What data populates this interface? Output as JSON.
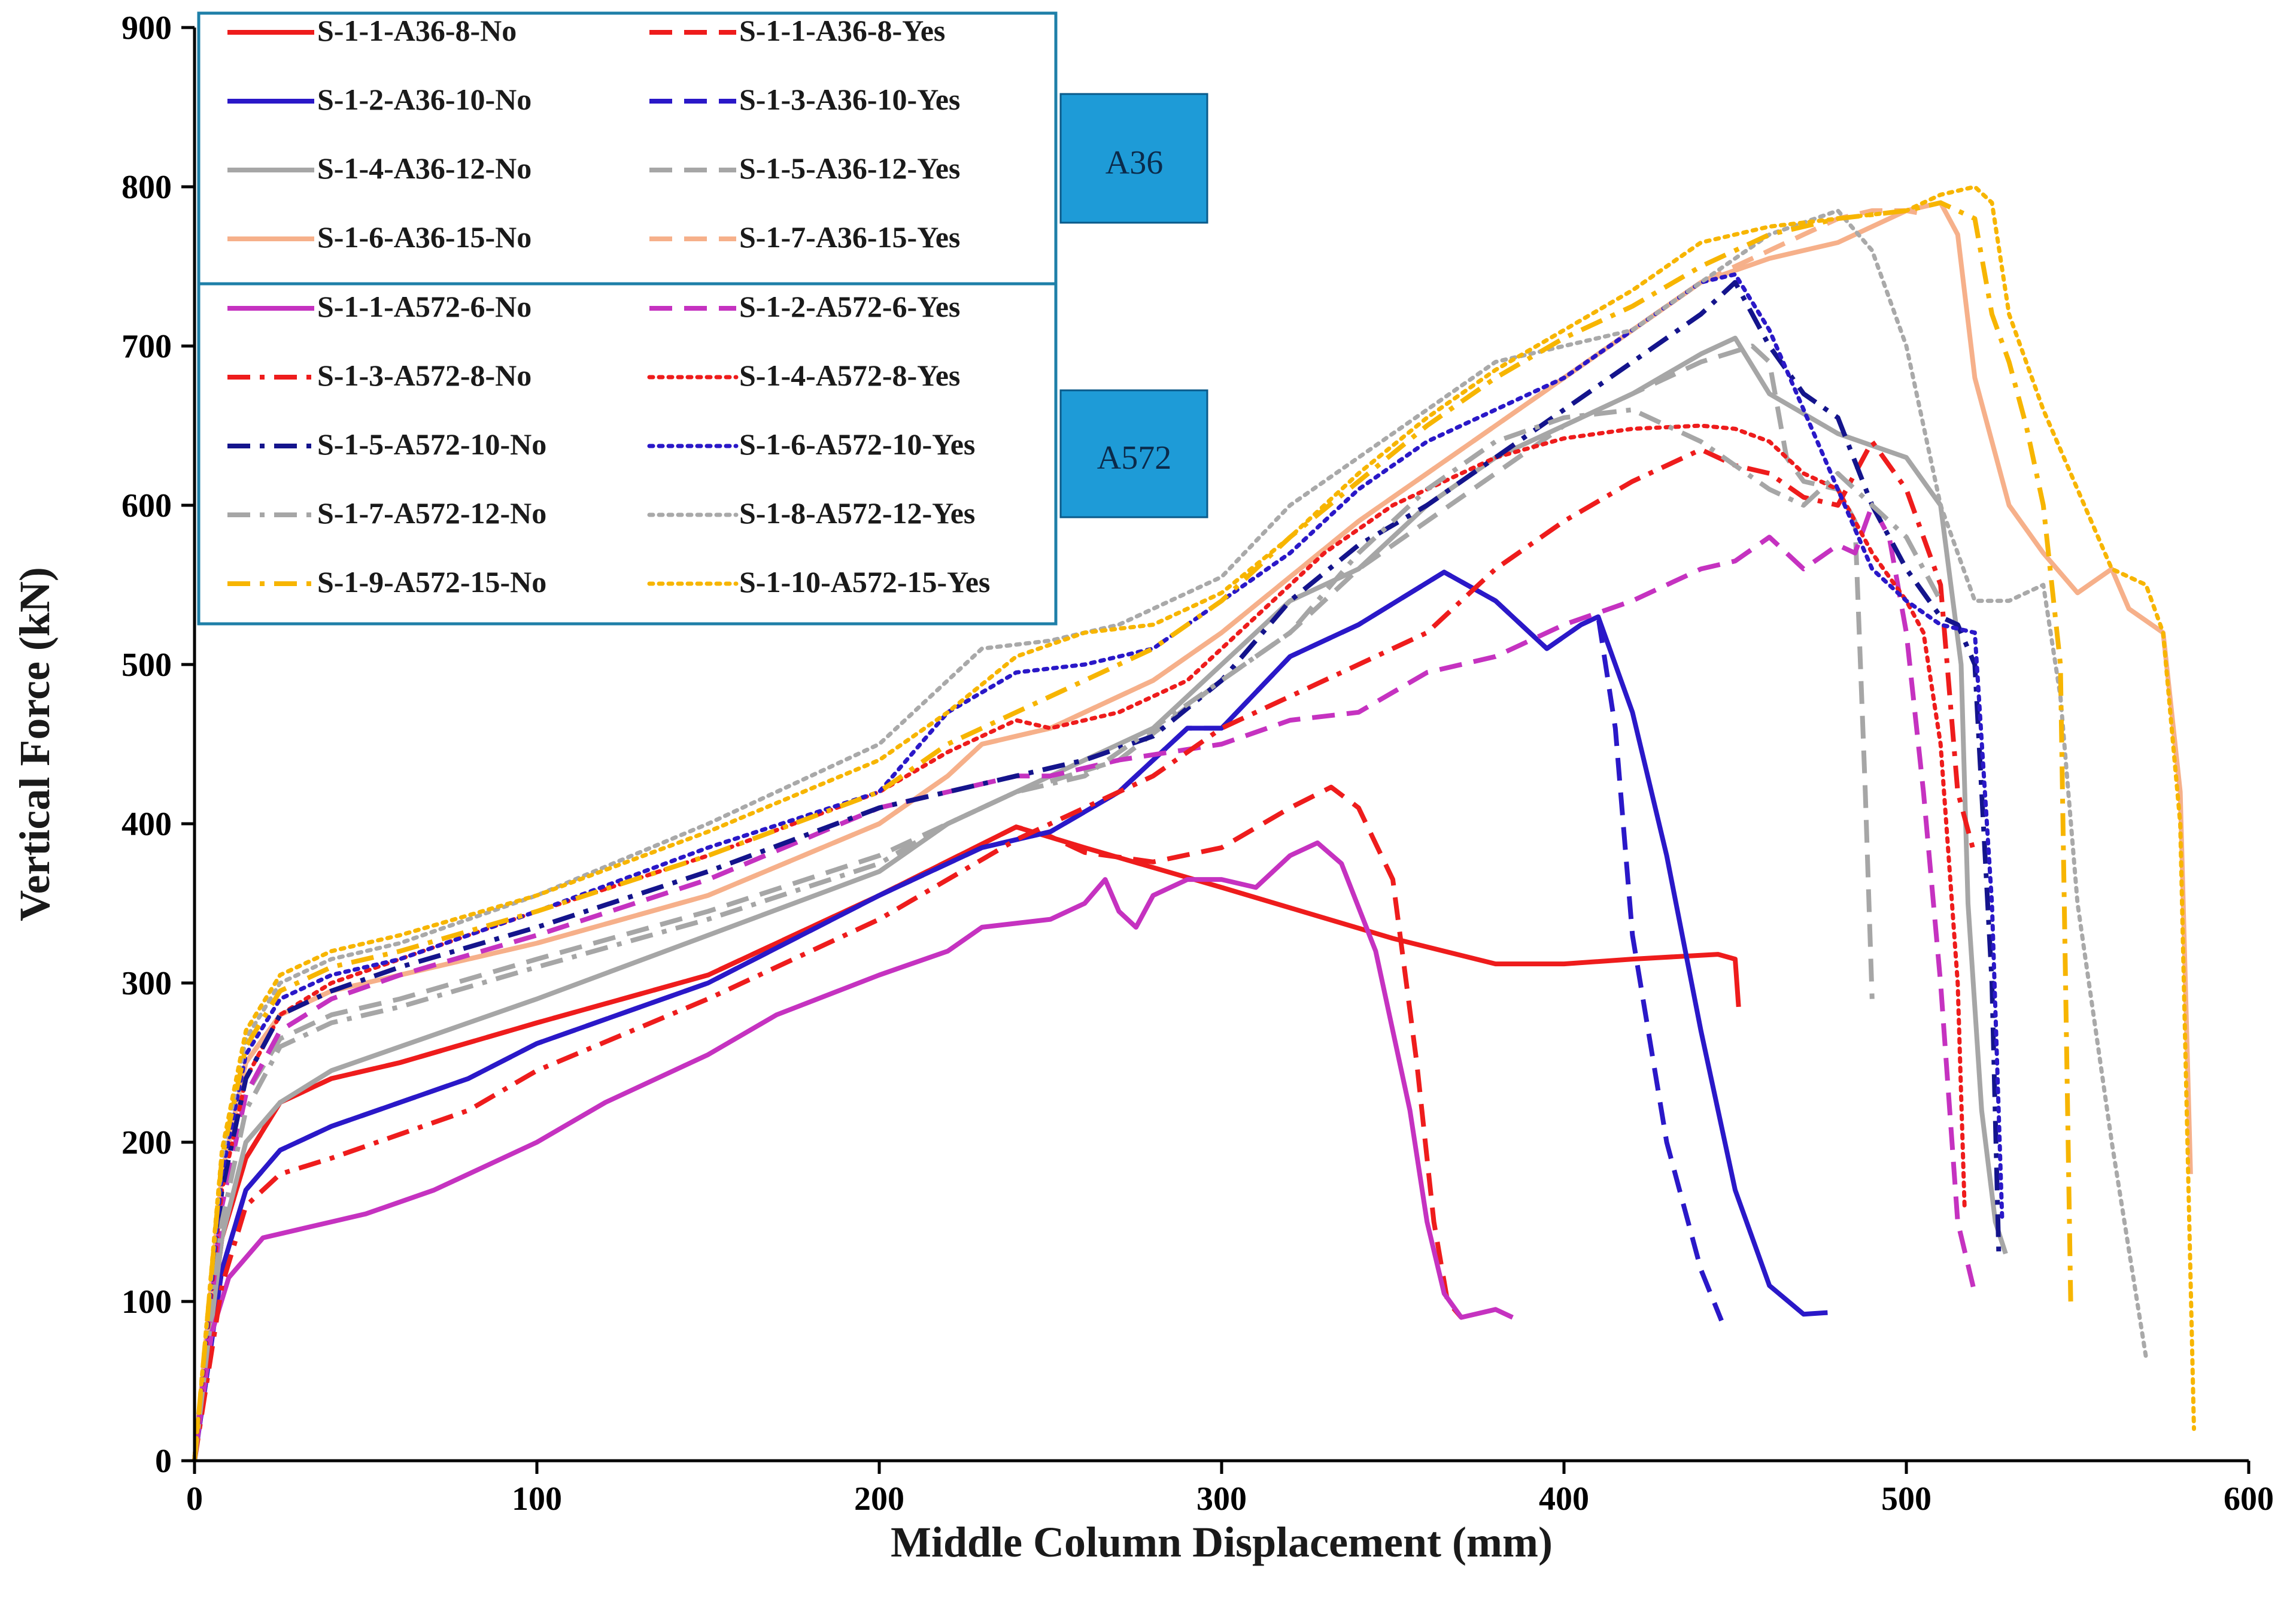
{
  "chart_data": {
    "type": "line",
    "title": "",
    "xlabel": "Middle Column Displacement (mm)",
    "ylabel": "Vertical Force (kN)",
    "xlim": [
      0,
      600
    ],
    "ylim": [
      0,
      900
    ],
    "xticks": [
      0,
      100,
      200,
      300,
      400,
      500,
      600
    ],
    "yticks": [
      0,
      100,
      200,
      300,
      400,
      500,
      600,
      700,
      800,
      900
    ],
    "grid": false,
    "legend_location": "top-left",
    "group_labels": [
      "A36",
      "A572"
    ],
    "colors": {
      "red": "#ee1c1c",
      "blue": "#2a18c8",
      "gray": "#a6a6a6",
      "peach": "#f6b08a",
      "magenta": "#c532c0",
      "orange": "#f7b500",
      "navy": "#14148c",
      "dotgray": "#a9a9a9"
    },
    "series": [
      {
        "name": "S-1-1-A36-8-No",
        "color": "#ee1c1c",
        "dash": "solid",
        "x": [
          0,
          8,
          15,
          25,
          40,
          60,
          100,
          150,
          200,
          240,
          260,
          300,
          350,
          380,
          400,
          420,
          445,
          450,
          451
        ],
        "y": [
          0,
          140,
          190,
          225,
          240,
          250,
          275,
          305,
          355,
          398,
          385,
          360,
          328,
          312,
          312,
          315,
          318,
          315,
          285
        ]
      },
      {
        "name": "S-1-1-A36-8-Yes",
        "color": "#ee1c1c",
        "dash": "dash",
        "x": [
          0,
          8,
          15,
          25,
          40,
          60,
          100,
          150,
          200,
          240,
          250,
          260,
          280,
          300,
          320,
          332,
          340,
          350,
          357,
          362,
          366,
          370
        ],
        "y": [
          0,
          140,
          190,
          225,
          240,
          250,
          275,
          305,
          355,
          398,
          392,
          382,
          376,
          385,
          410,
          423,
          410,
          365,
          250,
          150,
          100,
          90
        ]
      },
      {
        "name": "S-1-2-A36-10-No",
        "color": "#2a18c8",
        "dash": "solid",
        "x": [
          0,
          8,
          15,
          25,
          40,
          60,
          80,
          100,
          150,
          200,
          230,
          250,
          270,
          290,
          300,
          320,
          340,
          365,
          380,
          395,
          405,
          410,
          420,
          430,
          440,
          450,
          460,
          470,
          477
        ],
        "y": [
          0,
          120,
          170,
          195,
          210,
          225,
          240,
          262,
          300,
          355,
          385,
          395,
          420,
          460,
          460,
          505,
          525,
          558,
          540,
          510,
          525,
          530,
          470,
          380,
          270,
          170,
          110,
          92,
          93
        ]
      },
      {
        "name": "S-1-3-A36-10-Yes",
        "color": "#2a18c8",
        "dash": "dash",
        "x": [
          0,
          8,
          15,
          25,
          40,
          60,
          80,
          100,
          150,
          200,
          230,
          250,
          270,
          290,
          300,
          320,
          340,
          365,
          380,
          395,
          405,
          410,
          415,
          420,
          430,
          440,
          446
        ],
        "y": [
          0,
          120,
          170,
          195,
          210,
          225,
          240,
          262,
          300,
          355,
          385,
          395,
          420,
          460,
          460,
          505,
          525,
          558,
          540,
          510,
          525,
          530,
          460,
          330,
          200,
          120,
          88
        ]
      },
      {
        "name": "S-1-4-A36-12-No",
        "color": "#a6a6a6",
        "dash": "solid",
        "x": [
          0,
          8,
          15,
          25,
          40,
          60,
          100,
          150,
          200,
          220,
          250,
          280,
          300,
          320,
          340,
          360,
          380,
          400,
          420,
          440,
          450,
          460,
          480,
          500,
          510,
          516,
          518,
          522,
          526,
          529
        ],
        "y": [
          0,
          140,
          200,
          225,
          245,
          260,
          290,
          330,
          370,
          400,
          430,
          460,
          500,
          540,
          560,
          600,
          630,
          650,
          670,
          695,
          705,
          670,
          645,
          630,
          600,
          500,
          350,
          220,
          150,
          130
        ]
      },
      {
        "name": "S-1-5-A36-12-Yes",
        "color": "#a6a6a6",
        "dash": "dash",
        "x": [
          0,
          8,
          15,
          25,
          40,
          60,
          100,
          150,
          200,
          240,
          270,
          300,
          320,
          340,
          360,
          380,
          400,
          420,
          440,
          455,
          460,
          465,
          470,
          480,
          485,
          488,
          490
        ],
        "y": [
          0,
          160,
          230,
          265,
          280,
          290,
          315,
          345,
          380,
          420,
          440,
          490,
          520,
          560,
          590,
          620,
          650,
          670,
          690,
          700,
          690,
          630,
          615,
          610,
          590,
          420,
          290
        ]
      },
      {
        "name": "S-1-6-A36-15-No",
        "color": "#f6b08a",
        "dash": "solid",
        "x": [
          0,
          8,
          15,
          25,
          40,
          60,
          100,
          150,
          200,
          220,
          230,
          250,
          280,
          300,
          320,
          340,
          360,
          380,
          400,
          420,
          440,
          460,
          470,
          480,
          490,
          500,
          510,
          515,
          520,
          530,
          540,
          550,
          560,
          565,
          575,
          580,
          583
        ],
        "y": [
          0,
          180,
          250,
          280,
          295,
          305,
          325,
          355,
          400,
          430,
          450,
          460,
          490,
          520,
          555,
          590,
          620,
          650,
          680,
          710,
          740,
          755,
          760,
          765,
          775,
          785,
          790,
          770,
          680,
          600,
          570,
          545,
          560,
          535,
          520,
          420,
          180
        ]
      },
      {
        "name": "S-1-7-A36-15-Yes",
        "color": "#f6b08a",
        "dash": "dash",
        "x": [
          0,
          8,
          15,
          25,
          40,
          60,
          100,
          150,
          200,
          220,
          230,
          250,
          280,
          300,
          320,
          340,
          360,
          380,
          400,
          420,
          440,
          460,
          470,
          480,
          490,
          500,
          505
        ],
        "y": [
          0,
          180,
          250,
          280,
          295,
          305,
          325,
          355,
          400,
          430,
          450,
          460,
          490,
          520,
          555,
          590,
          620,
          650,
          680,
          710,
          740,
          760,
          770,
          780,
          785,
          785,
          783
        ]
      },
      {
        "name": "S-1-1-A572-6-No",
        "color": "#c532c0",
        "dash": "solid",
        "x": [
          0,
          5,
          10,
          20,
          30,
          40,
          50,
          70,
          100,
          120,
          150,
          170,
          200,
          220,
          230,
          250,
          260,
          266,
          270,
          275,
          280,
          290,
          300,
          310,
          320,
          328,
          335,
          345,
          355,
          360,
          365,
          370,
          380,
          385
        ],
        "y": [
          0,
          80,
          115,
          140,
          145,
          150,
          155,
          170,
          200,
          225,
          255,
          280,
          305,
          320,
          335,
          340,
          350,
          365,
          345,
          335,
          355,
          365,
          365,
          360,
          380,
          388,
          375,
          320,
          220,
          150,
          105,
          90,
          95,
          90
        ]
      },
      {
        "name": "S-1-2-A572-6-Yes",
        "color": "#c532c0",
        "dash": "dash",
        "x": [
          0,
          8,
          15,
          25,
          40,
          60,
          100,
          150,
          200,
          240,
          250,
          270,
          300,
          320,
          340,
          360,
          380,
          400,
          420,
          440,
          450,
          460,
          470,
          480,
          485,
          490,
          495,
          500,
          505,
          510,
          515,
          520
        ],
        "y": [
          0,
          160,
          230,
          270,
          290,
          305,
          330,
          365,
          410,
          430,
          430,
          440,
          450,
          465,
          470,
          495,
          505,
          525,
          540,
          560,
          565,
          580,
          560,
          575,
          570,
          600,
          580,
          520,
          420,
          300,
          150,
          105
        ]
      },
      {
        "name": "S-1-3-A572-8-No",
        "color": "#ee1c1c",
        "dash": "dashdot",
        "x": [
          0,
          8,
          15,
          25,
          40,
          60,
          80,
          100,
          150,
          200,
          240,
          260,
          280,
          300,
          320,
          340,
          360,
          380,
          400,
          420,
          440,
          450,
          460,
          470,
          480,
          490,
          500,
          510,
          515,
          520
        ],
        "y": [
          0,
          110,
          160,
          180,
          190,
          205,
          220,
          245,
          290,
          340,
          390,
          410,
          430,
          460,
          480,
          500,
          520,
          560,
          590,
          615,
          635,
          625,
          620,
          605,
          600,
          640,
          610,
          550,
          420,
          380
        ]
      },
      {
        "name": "S-1-4-A572-8-Yes",
        "color": "#ee1c1c",
        "dash": "dot",
        "x": [
          0,
          8,
          15,
          25,
          40,
          60,
          100,
          150,
          200,
          220,
          240,
          250,
          270,
          290,
          310,
          330,
          350,
          380,
          400,
          420,
          440,
          450,
          460,
          470,
          480,
          490,
          500,
          505,
          510,
          515,
          517
        ],
        "y": [
          0,
          170,
          240,
          280,
          300,
          315,
          345,
          380,
          420,
          445,
          465,
          460,
          470,
          490,
          530,
          570,
          600,
          630,
          642,
          648,
          650,
          648,
          640,
          620,
          610,
          570,
          540,
          520,
          450,
          300,
          160
        ]
      },
      {
        "name": "S-1-5-A572-10-No",
        "color": "#14148c",
        "dash": "dashdot",
        "x": [
          0,
          8,
          15,
          25,
          40,
          60,
          100,
          150,
          200,
          240,
          260,
          280,
          300,
          320,
          340,
          360,
          380,
          400,
          420,
          440,
          450,
          460,
          470,
          480,
          490,
          500,
          510,
          515,
          520,
          525,
          527
        ],
        "y": [
          0,
          170,
          240,
          280,
          295,
          310,
          335,
          370,
          410,
          430,
          440,
          455,
          490,
          540,
          575,
          600,
          630,
          660,
          690,
          720,
          740,
          700,
          670,
          655,
          600,
          560,
          530,
          525,
          500,
          300,
          130
        ]
      },
      {
        "name": "S-1-6-A572-10-Yes",
        "color": "#2a18c8",
        "dash": "dot",
        "x": [
          0,
          8,
          15,
          25,
          40,
          60,
          100,
          150,
          200,
          220,
          240,
          260,
          280,
          300,
          320,
          340,
          360,
          380,
          400,
          420,
          440,
          450,
          460,
          470,
          480,
          490,
          500,
          510,
          520,
          525,
          528
        ],
        "y": [
          0,
          180,
          255,
          290,
          305,
          315,
          345,
          385,
          420,
          470,
          495,
          500,
          510,
          540,
          570,
          610,
          640,
          660,
          680,
          710,
          740,
          745,
          710,
          660,
          610,
          560,
          540,
          525,
          520,
          350,
          150
        ]
      },
      {
        "name": "S-1-7-A572-12-No",
        "color": "#a6a6a6",
        "dash": "dashdot",
        "x": [
          0,
          8,
          15,
          25,
          40,
          60,
          100,
          150,
          200,
          220,
          240,
          260,
          280,
          300,
          320,
          340,
          360,
          380,
          400,
          420,
          440,
          460,
          470,
          480,
          490,
          500,
          505,
          510
        ],
        "y": [
          0,
          150,
          220,
          260,
          275,
          285,
          310,
          340,
          375,
          400,
          420,
          430,
          460,
          490,
          520,
          570,
          610,
          640,
          655,
          660,
          640,
          610,
          600,
          620,
          600,
          580,
          560,
          540
        ]
      },
      {
        "name": "S-1-8-A572-12-Yes",
        "color": "#a9a9a9",
        "dash": "dot",
        "x": [
          0,
          8,
          15,
          25,
          40,
          60,
          100,
          150,
          200,
          230,
          250,
          270,
          300,
          320,
          340,
          360,
          380,
          400,
          420,
          440,
          460,
          480,
          490,
          500,
          510,
          520,
          530,
          540,
          545,
          550,
          560,
          570
        ],
        "y": [
          0,
          190,
          265,
          300,
          315,
          325,
          355,
          400,
          450,
          510,
          515,
          525,
          555,
          600,
          630,
          660,
          690,
          700,
          710,
          740,
          770,
          785,
          760,
          700,
          600,
          540,
          540,
          550,
          480,
          350,
          200,
          65
        ]
      },
      {
        "name": "S-1-9-A572-15-No",
        "color": "#f7b500",
        "dash": "dashdot",
        "x": [
          0,
          8,
          15,
          25,
          40,
          60,
          100,
          150,
          200,
          220,
          240,
          260,
          280,
          300,
          320,
          340,
          360,
          380,
          400,
          420,
          440,
          460,
          480,
          500,
          510,
          520,
          525,
          530,
          535,
          540,
          545,
          548
        ],
        "y": [
          0,
          190,
          260,
          295,
          310,
          320,
          345,
          380,
          420,
          450,
          470,
          490,
          510,
          540,
          580,
          615,
          650,
          680,
          705,
          725,
          750,
          770,
          780,
          785,
          790,
          780,
          720,
          690,
          650,
          600,
          500,
          100
        ]
      },
      {
        "name": "S-1-10-A572-15-Yes",
        "color": "#f7b500",
        "dash": "dot",
        "x": [
          0,
          8,
          15,
          25,
          40,
          60,
          100,
          150,
          200,
          220,
          240,
          260,
          280,
          300,
          320,
          340,
          360,
          380,
          400,
          420,
          440,
          460,
          480,
          500,
          510,
          520,
          525,
          530,
          540,
          550,
          560,
          570,
          575,
          580,
          584
        ],
        "y": [
          0,
          195,
          270,
          305,
          320,
          330,
          355,
          395,
          440,
          470,
          505,
          520,
          525,
          545,
          580,
          620,
          655,
          685,
          710,
          735,
          765,
          775,
          780,
          785,
          795,
          800,
          790,
          720,
          660,
          610,
          560,
          550,
          520,
          400,
          20
        ]
      }
    ]
  }
}
